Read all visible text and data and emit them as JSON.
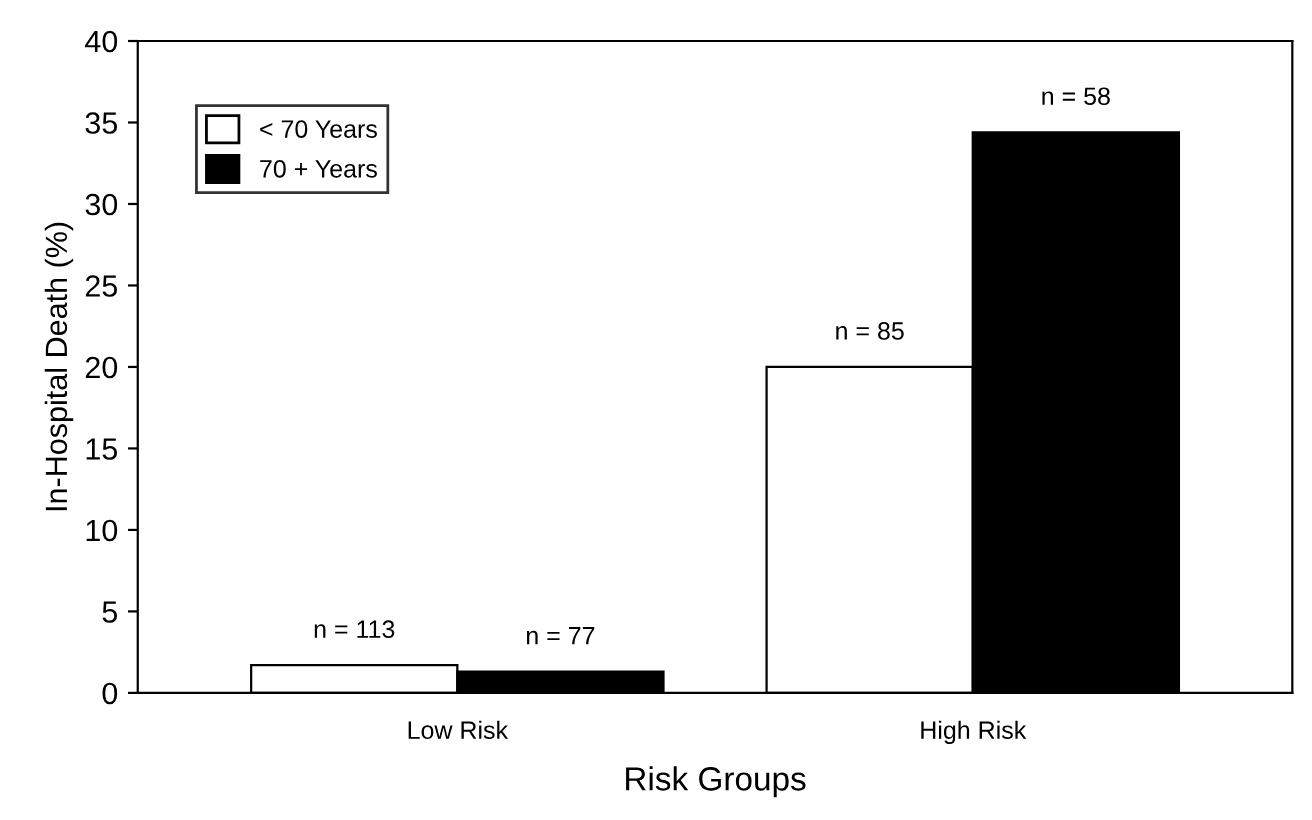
{
  "chart_data": {
    "type": "bar",
    "xlabel": "Risk Groups",
    "ylabel": "In-Hospital Death (%)",
    "categories": [
      "Low Risk",
      "High Risk"
    ],
    "series": [
      {
        "name": "< 70 Years",
        "color": "#ffffff",
        "values": [
          1.7,
          20
        ]
      },
      {
        "name": "70 + Years",
        "color": "#000000",
        "values": [
          1.3,
          34.4
        ]
      }
    ],
    "annotations": [
      "n = 113",
      "n = 85",
      "n = 77",
      "n = 58"
    ],
    "ylim": [
      0,
      40
    ],
    "yticks": [
      0,
      5,
      10,
      15,
      20,
      25,
      30,
      35,
      40
    ],
    "grid": false,
    "legend": "top left"
  }
}
